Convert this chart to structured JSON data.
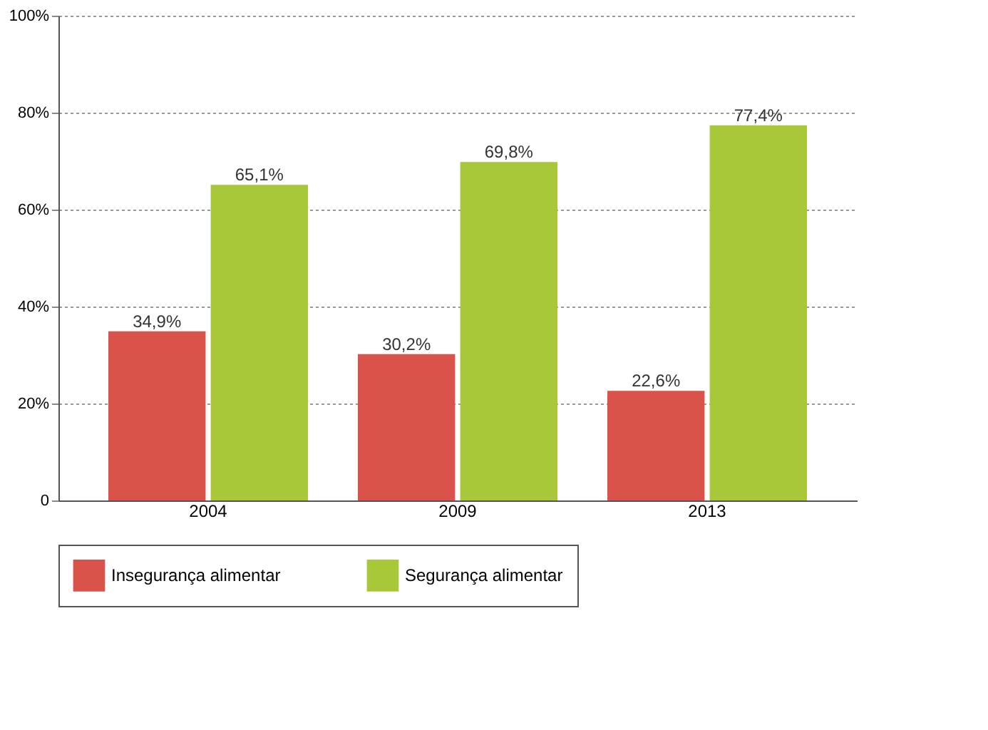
{
  "chart_data": {
    "type": "bar",
    "categories": [
      "2004",
      "2009",
      "2013"
    ],
    "series": [
      {
        "name": "Insegurança alimentar",
        "color": "#d9534a",
        "values": [
          34.9,
          30.2,
          22.6
        ],
        "value_labels": [
          "34,9%",
          "30,2%",
          "22,6%"
        ]
      },
      {
        "name": "Segurança alimentar",
        "color": "#a8c83a",
        "values": [
          65.1,
          69.8,
          77.4
        ],
        "value_labels": [
          "65,1%",
          "69,8%",
          "77,4%"
        ]
      }
    ],
    "ylim": [
      0,
      100
    ],
    "yticks": [
      {
        "value": 0,
        "label": "0"
      },
      {
        "value": 20,
        "label": "20%"
      },
      {
        "value": 40,
        "label": "40%"
      },
      {
        "value": 60,
        "label": "60%"
      },
      {
        "value": 80,
        "label": "80%"
      },
      {
        "value": 100,
        "label": "100%"
      }
    ],
    "grid": "y",
    "legend": "bottom"
  }
}
